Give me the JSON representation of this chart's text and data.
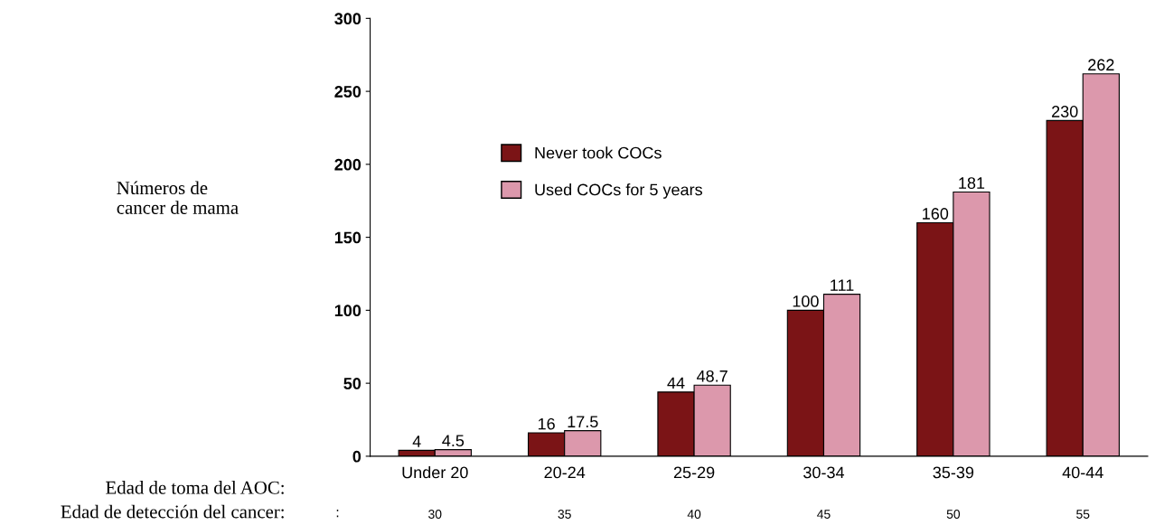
{
  "chart_data": {
    "type": "bar",
    "xlabel": "Edad de toma del AOC:",
    "categories": [
      "Under 20",
      "20-24",
      "25-29",
      "30-34",
      "35-39",
      "40-44"
    ],
    "series": [
      {
        "name": "Never took COCs",
        "color": "#7b1416",
        "values": [
          4,
          16,
          44,
          100,
          160,
          230
        ]
      },
      {
        "name": "Used COCs for 5 years",
        "color": "#dc98ac",
        "values": [
          4.5,
          17.5,
          48.7,
          111,
          181,
          262
        ]
      }
    ],
    "ylim": [
      0,
      300
    ],
    "yticks": [
      0,
      50,
      100,
      150,
      200,
      250,
      300
    ],
    "data_labels": true,
    "legend": "center left",
    "grid": false,
    "annotations": [
      "Números de\ncancer de mama",
      "Edad de detección del cancer:",
      ":",
      "30",
      "35",
      "40",
      "45",
      "50",
      "55"
    ]
  }
}
